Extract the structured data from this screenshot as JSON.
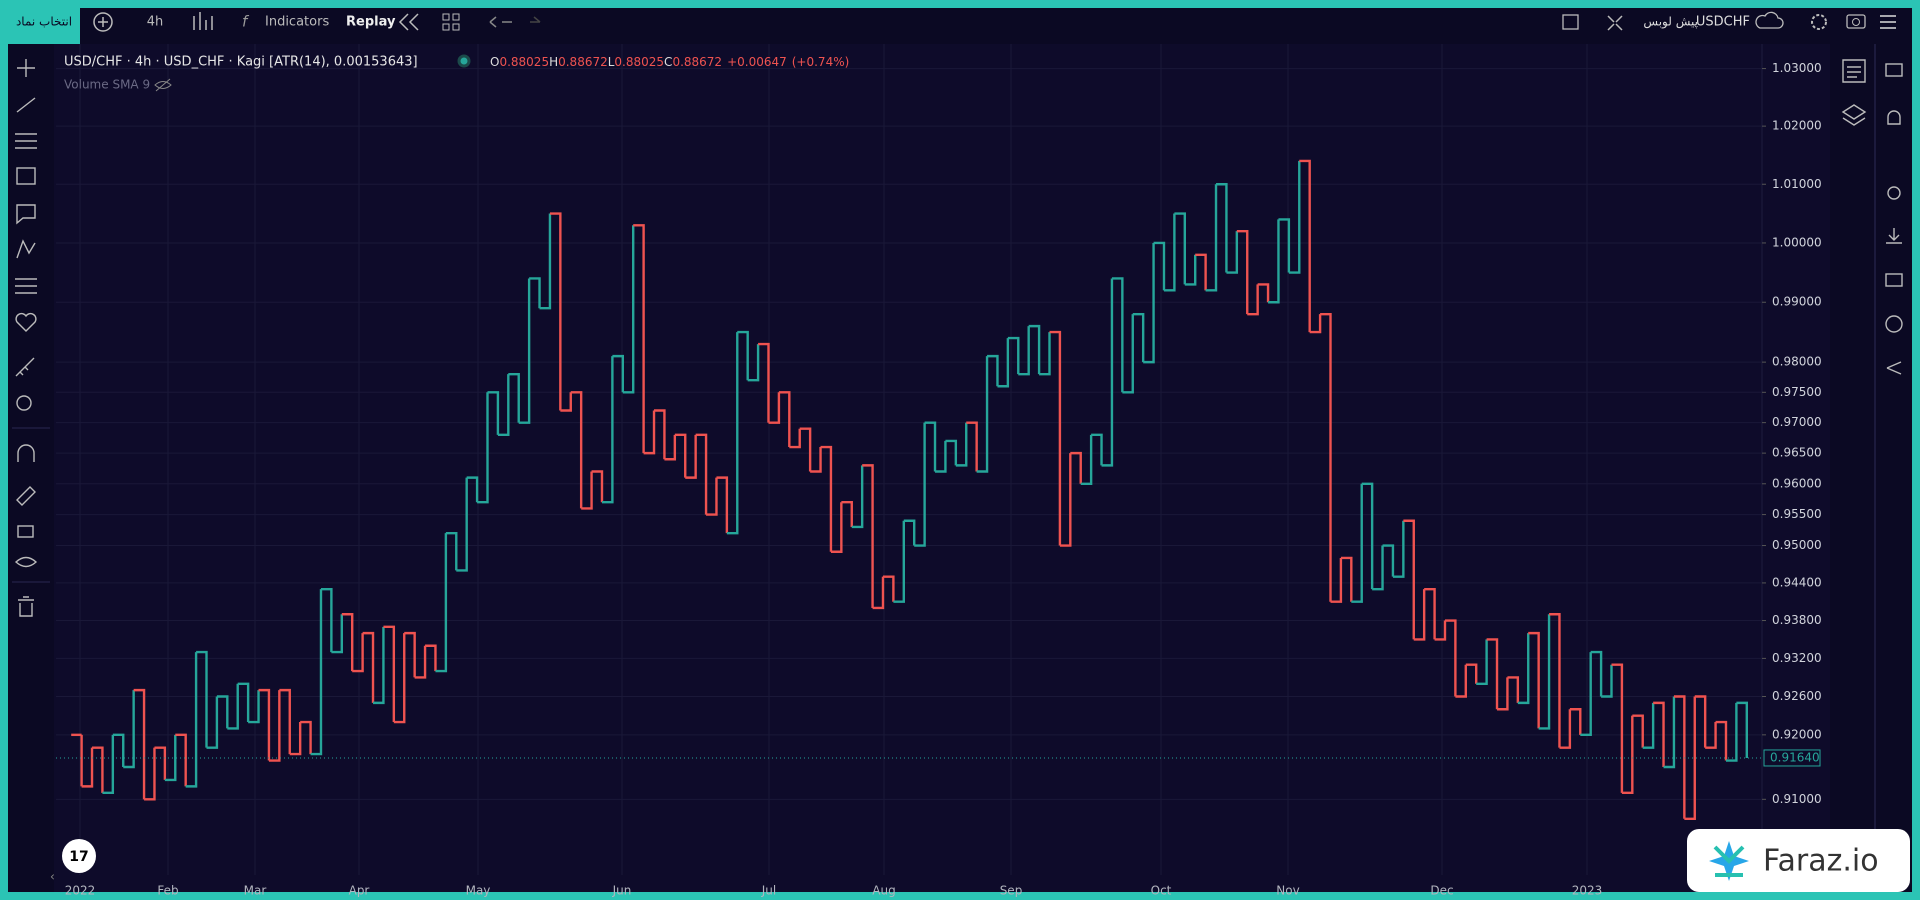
{
  "toolbar": {
    "symbol_button": "انتخاب نماد",
    "interval": "4h",
    "indicators": "Indicators",
    "replay": "Replay",
    "symbol": "USDCHF",
    "broker": "پیش لوبس"
  },
  "legend": {
    "title": "USD/CHF · 4h · USD_CHF · Kagi [ATR(14), 0.00153643]",
    "o_label": "O",
    "open": 0.88025,
    "h_label": "H",
    "high": 0.88672,
    "l_label": "L",
    "low": 0.88025,
    "c_label": "C",
    "close": 0.88672,
    "change": "+0.00647",
    "change_pct": "(+0.74%)",
    "volume": "Volume SMA 9"
  },
  "watermark": "Faraz.io",
  "chart_data": {
    "type": "kagi",
    "log_scale": true,
    "grid": true,
    "up_color": "#26a69a",
    "down_color": "#ef5350",
    "ylim": [
      0.8984,
      1.0343
    ],
    "yticks": [
      {
        "value": 1.03,
        "label": "1.03000"
      },
      {
        "value": 1.02,
        "label": "1.02000"
      },
      {
        "value": 1.01,
        "label": "1.01000"
      },
      {
        "value": 1.0,
        "label": "1.00000"
      },
      {
        "value": 0.99,
        "label": "0.99000"
      },
      {
        "value": 0.98,
        "label": "0.98000"
      },
      {
        "value": 0.975,
        "label": "0.97500"
      },
      {
        "value": 0.97,
        "label": "0.97000"
      },
      {
        "value": 0.965,
        "label": "0.96500"
      },
      {
        "value": 0.96,
        "label": "0.96000"
      },
      {
        "value": 0.955,
        "label": "0.95500"
      },
      {
        "value": 0.95,
        "label": "0.95000"
      },
      {
        "value": 0.944,
        "label": "0.94400"
      },
      {
        "value": 0.938,
        "label": "0.93800"
      },
      {
        "value": 0.932,
        "label": "0.93200"
      },
      {
        "value": 0.926,
        "label": "0.92600"
      },
      {
        "value": 0.92,
        "label": "0.92000"
      },
      {
        "value": 0.91,
        "label": "0.91000"
      }
    ],
    "last_price": {
      "value": 0.9164,
      "label": "0.91640"
    },
    "x_labels": [
      "2022",
      "Feb",
      "Mar",
      "Apr",
      "May",
      "Jun",
      "Jul",
      "Aug",
      "Sep",
      "Oct",
      "Nov",
      "Dec",
      "2023"
    ],
    "values": [
      0.92,
      0.912,
      0.918,
      0.911,
      0.92,
      0.915,
      0.927,
      0.91,
      0.918,
      0.913,
      0.92,
      0.912,
      0.933,
      0.918,
      0.926,
      0.921,
      0.928,
      0.922,
      0.927,
      0.916,
      0.927,
      0.917,
      0.922,
      0.917,
      0.943,
      0.933,
      0.939,
      0.93,
      0.936,
      0.925,
      0.937,
      0.922,
      0.936,
      0.929,
      0.934,
      0.93,
      0.952,
      0.946,
      0.961,
      0.957,
      0.975,
      0.968,
      0.978,
      0.97,
      0.994,
      0.989,
      1.005,
      0.972,
      0.975,
      0.956,
      0.962,
      0.957,
      0.981,
      0.975,
      1.003,
      0.965,
      0.972,
      0.964,
      0.968,
      0.961,
      0.968,
      0.955,
      0.961,
      0.952,
      0.985,
      0.977,
      0.983,
      0.97,
      0.975,
      0.966,
      0.969,
      0.962,
      0.966,
      0.949,
      0.957,
      0.953,
      0.963,
      0.94,
      0.945,
      0.941,
      0.954,
      0.95,
      0.97,
      0.962,
      0.967,
      0.963,
      0.97,
      0.962,
      0.981,
      0.976,
      0.984,
      0.978,
      0.986,
      0.978,
      0.985,
      0.95,
      0.965,
      0.96,
      0.968,
      0.963,
      0.994,
      0.975,
      0.988,
      0.98,
      1.0,
      0.992,
      1.005,
      0.993,
      0.998,
      0.992,
      1.01,
      0.995,
      1.002,
      0.988,
      0.993,
      0.99,
      1.004,
      0.995,
      1.014,
      0.985,
      0.988,
      0.941,
      0.948,
      0.941,
      0.96,
      0.943,
      0.95,
      0.945,
      0.954,
      0.935,
      0.943,
      0.935,
      0.938,
      0.926,
      0.931,
      0.928,
      0.935,
      0.924,
      0.929,
      0.925,
      0.936,
      0.921,
      0.939,
      0.918,
      0.924,
      0.92,
      0.933,
      0.926,
      0.931,
      0.911,
      0.923,
      0.918,
      0.925,
      0.915,
      0.926,
      0.907,
      0.926,
      0.918,
      0.922,
      0.916,
      0.925,
      0.9164
    ]
  }
}
